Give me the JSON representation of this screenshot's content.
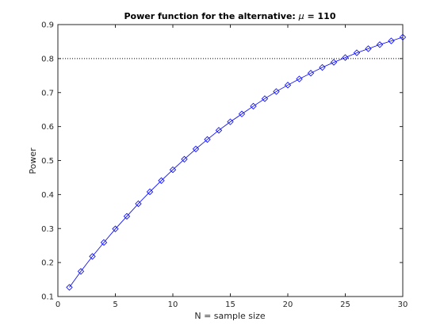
{
  "chart_data": {
    "type": "line",
    "title": "Power function for the alternative: μ = 110",
    "title_parts": {
      "prefix": "Power function for the alternative: ",
      "symbol": "μ",
      "suffix": " = 110"
    },
    "xlabel": "N = sample size",
    "ylabel": "Power",
    "xlim": [
      0,
      30
    ],
    "ylim": [
      0.1,
      0.9
    ],
    "xticks": [
      0,
      5,
      10,
      15,
      20,
      25,
      30
    ],
    "xtick_labels": [
      "0",
      "5",
      "10",
      "15",
      "20",
      "25",
      "30"
    ],
    "yticks": [
      0.1,
      0.2,
      0.3,
      0.4,
      0.5,
      0.6,
      0.7,
      0.8,
      0.9
    ],
    "ytick_labels": [
      "0.1",
      "0.2",
      "0.3",
      "0.4",
      "0.5",
      "0.6",
      "0.7",
      "0.8",
      "0.9"
    ],
    "grid": false,
    "reference_line": {
      "y": 0.8,
      "style": "dotted",
      "color": "#000000"
    },
    "series": [
      {
        "marker": "diamond",
        "color": "#0000ff",
        "x": [
          1,
          2,
          3,
          4,
          5,
          6,
          7,
          8,
          9,
          10,
          11,
          12,
          13,
          14,
          15,
          16,
          17,
          18,
          19,
          20,
          21,
          22,
          23,
          24,
          25,
          26,
          27,
          28,
          29,
          30
        ],
        "y": [
          0.127,
          0.174,
          0.218,
          0.259,
          0.299,
          0.336,
          0.373,
          0.408,
          0.441,
          0.473,
          0.504,
          0.534,
          0.562,
          0.589,
          0.614,
          0.637,
          0.66,
          0.682,
          0.703,
          0.722,
          0.74,
          0.757,
          0.774,
          0.789,
          0.803,
          0.817,
          0.829,
          0.841,
          0.852,
          0.863
        ]
      }
    ]
  }
}
